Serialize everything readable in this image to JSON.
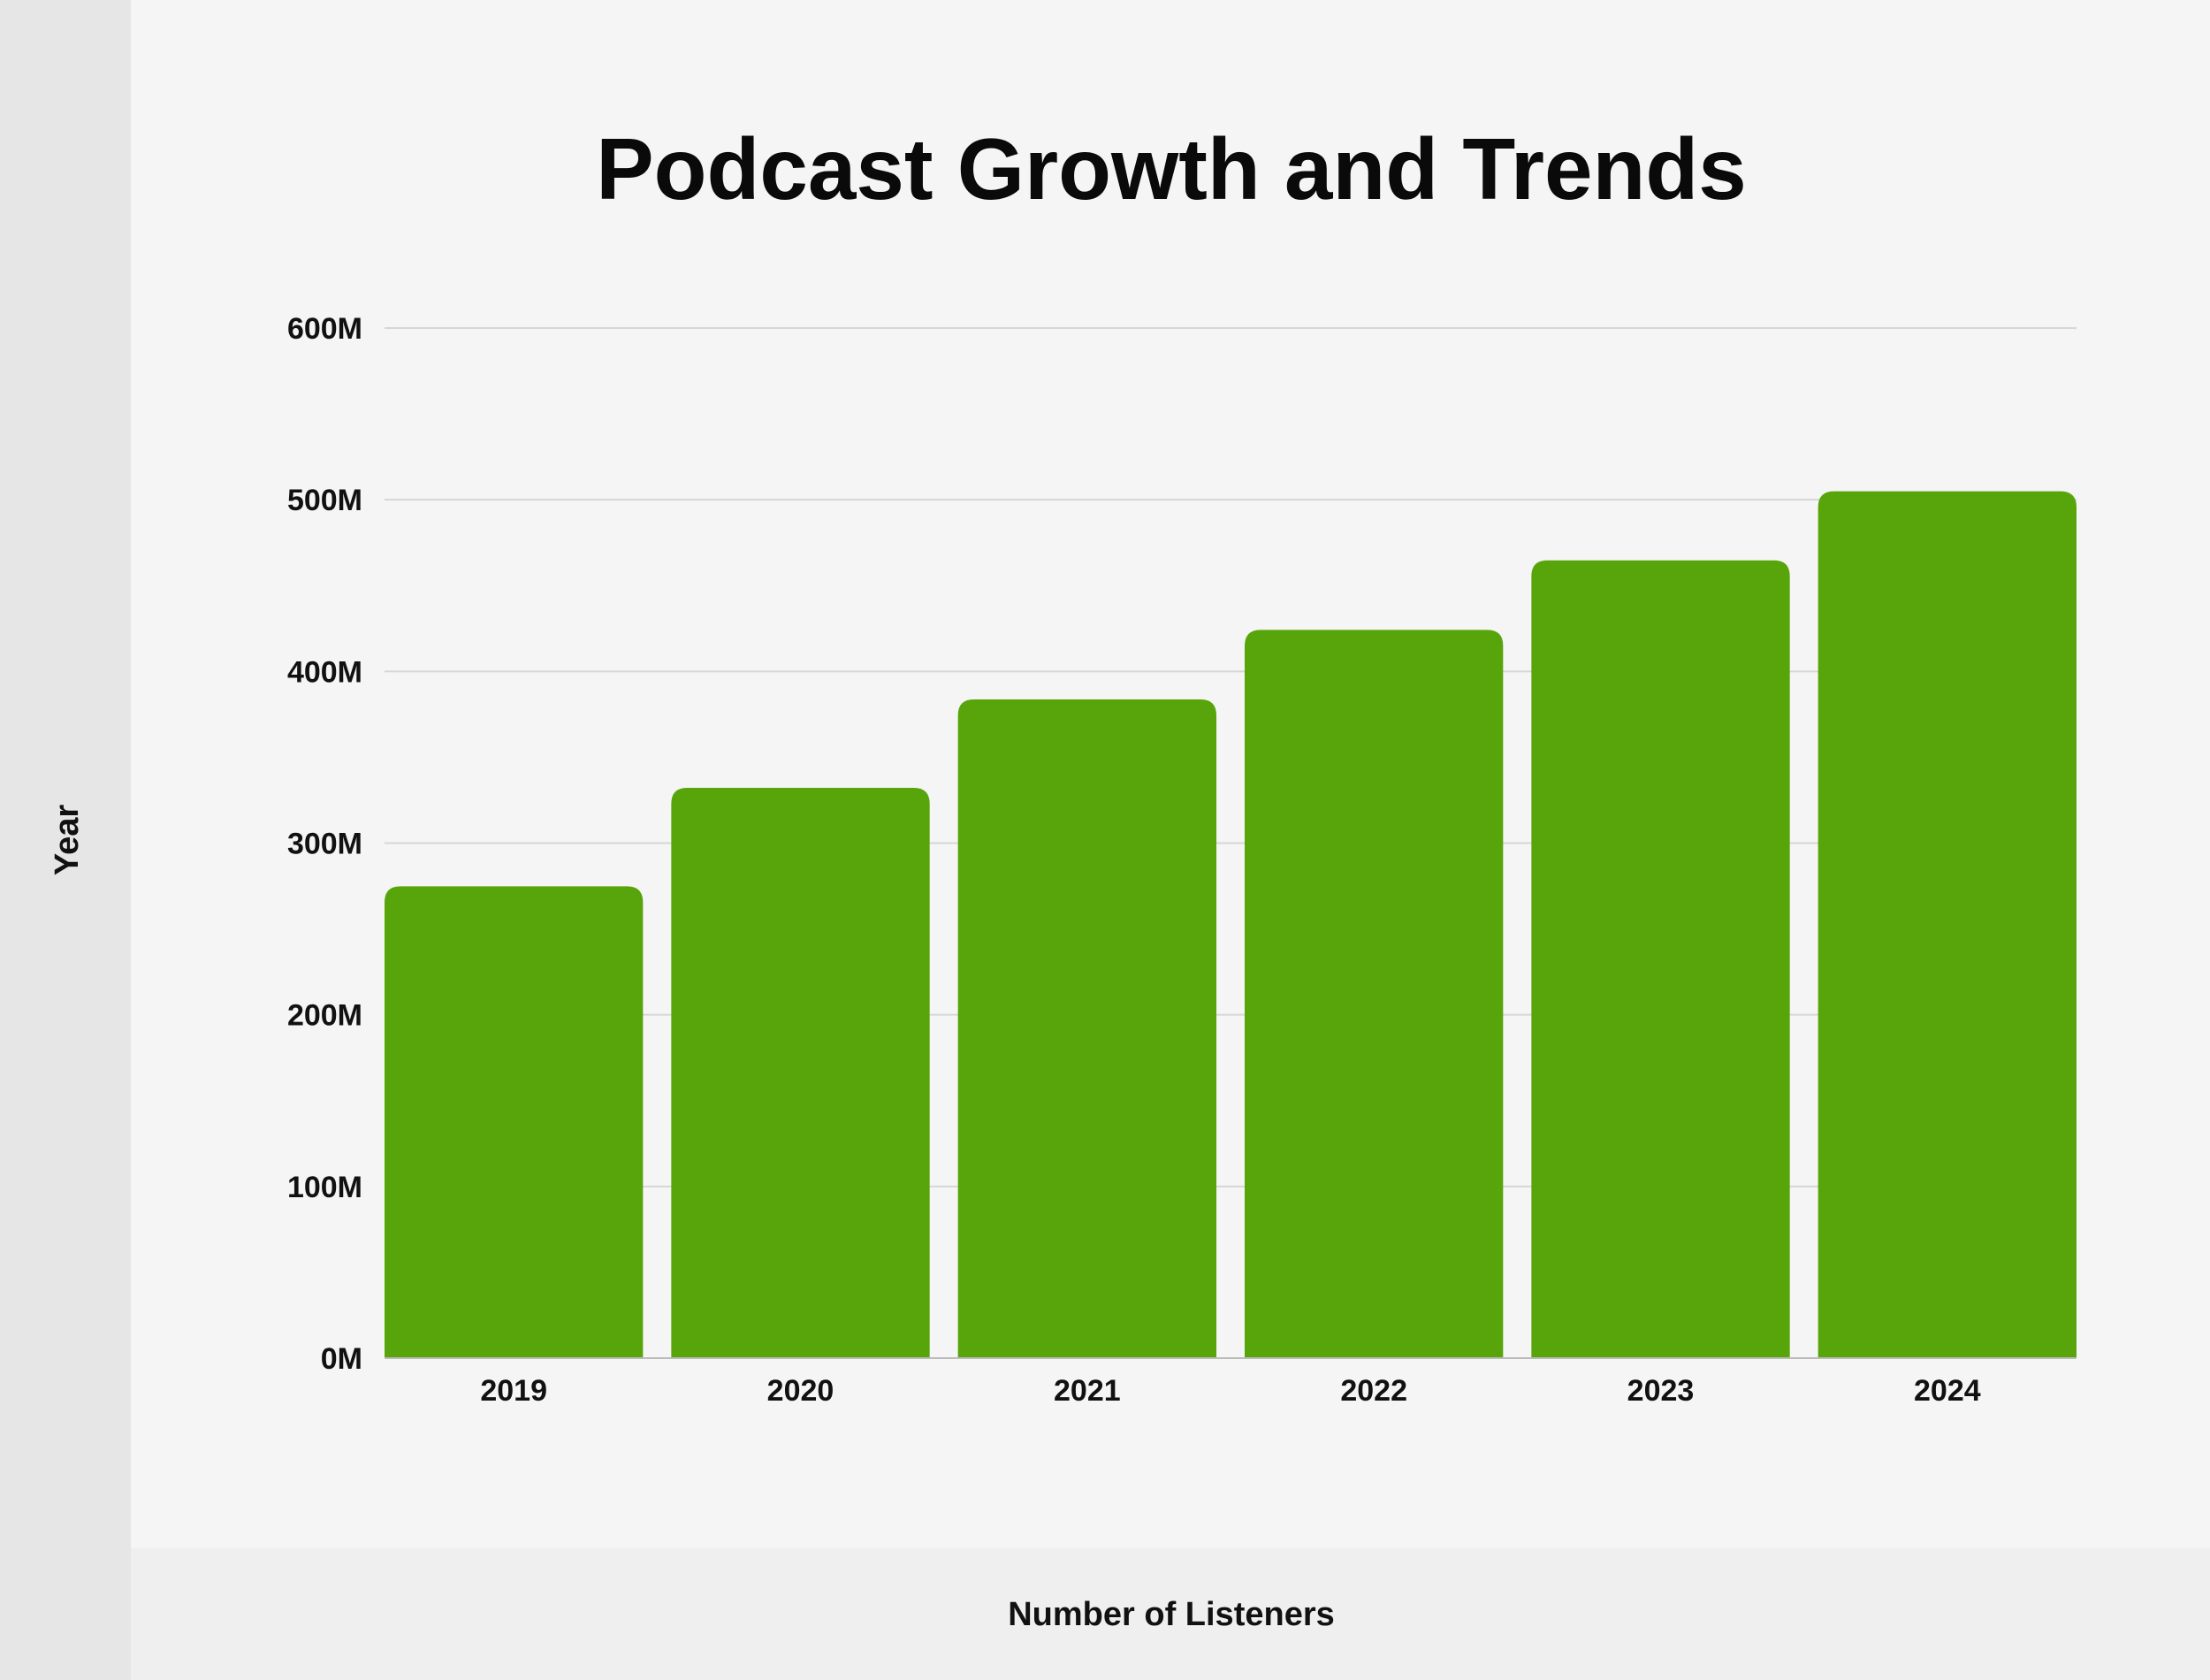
{
  "chart_data": {
    "type": "bar",
    "title": "Podcast Growth and Trends",
    "xlabel": "Number of Listeners",
    "ylabel": "Year",
    "categories": [
      "2019",
      "2020",
      "2021",
      "2022",
      "2023",
      "2024"
    ],
    "values": [
      274.8,
      332.2,
      383.7,
      424.2,
      464.7,
      504.9
    ],
    "value_unit": "M",
    "ylim": [
      0,
      600
    ],
    "yticks": [
      "0M",
      "100M",
      "200M",
      "300M",
      "400M",
      "500M",
      "600M"
    ],
    "grid": true,
    "legend": "none",
    "bar_color": "#58a50b"
  }
}
